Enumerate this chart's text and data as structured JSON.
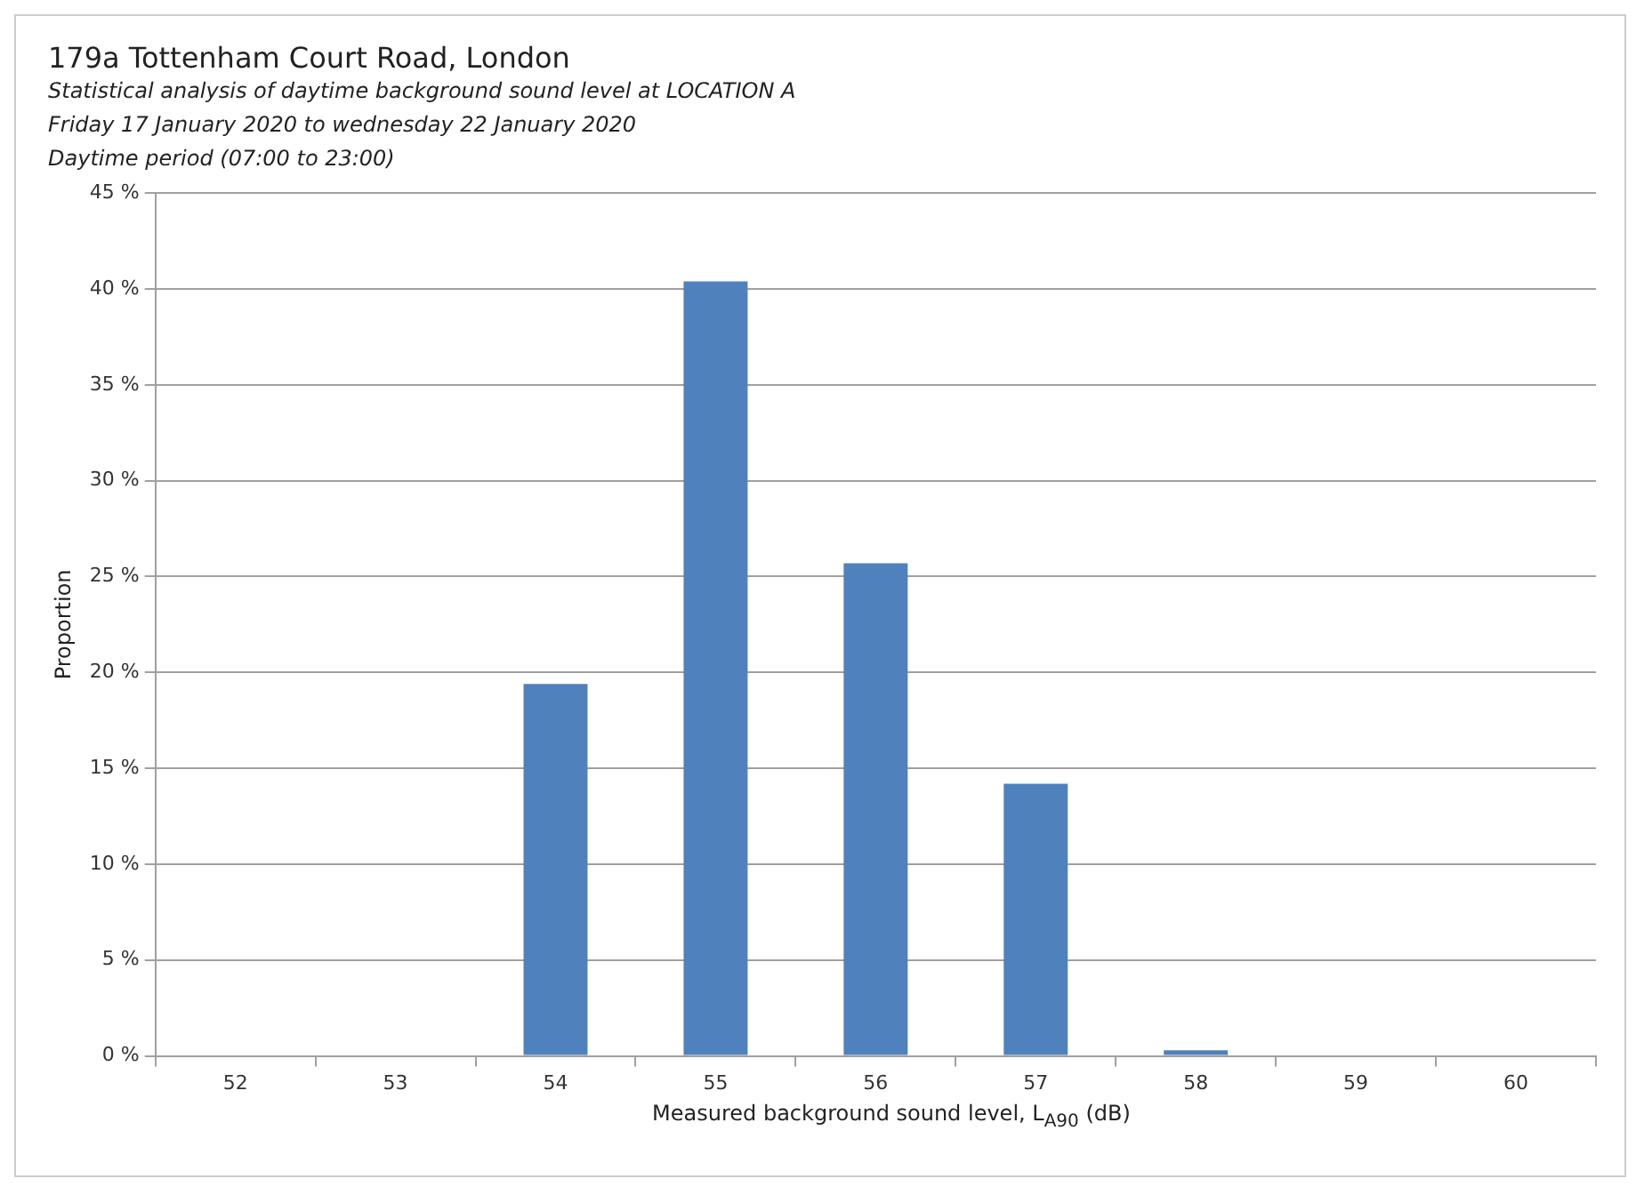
{
  "chart_data": {
    "type": "bar",
    "title": "179a Tottenham Court Road, London",
    "subtitle": "Statistical analysis of daytime background sound level at LOCATION A\nFriday 17 January 2020 to wednesday 22 January 2020\nDaytime period (07:00 to 23:00)",
    "xlabel": "Measured background sound level, L$_{A90}$ (dB)",
    "ylabel": "Proportion",
    "categories": [
      "52",
      "53",
      "54",
      "55",
      "56",
      "57",
      "58",
      "59",
      "60"
    ],
    "values": [
      0,
      0,
      19.4,
      40.4,
      25.7,
      14.2,
      0.3,
      0,
      0
    ],
    "color": "#4f81bd",
    "ylim": [
      0,
      45
    ],
    "yticks": [
      {
        "value": 0,
        "label": "0 %"
      },
      {
        "value": 5,
        "label": "5 %"
      },
      {
        "value": 10,
        "label": "10 %"
      },
      {
        "value": 15,
        "label": "15 %"
      },
      {
        "value": 20,
        "label": "20 %"
      },
      {
        "value": 25,
        "label": "25 %"
      },
      {
        "value": 30,
        "label": "30 %"
      },
      {
        "value": 35,
        "label": "35 %"
      },
      {
        "value": 40,
        "label": "40 %"
      },
      {
        "value": 45,
        "label": "45 %"
      }
    ],
    "grid": "y",
    "legend": false
  }
}
